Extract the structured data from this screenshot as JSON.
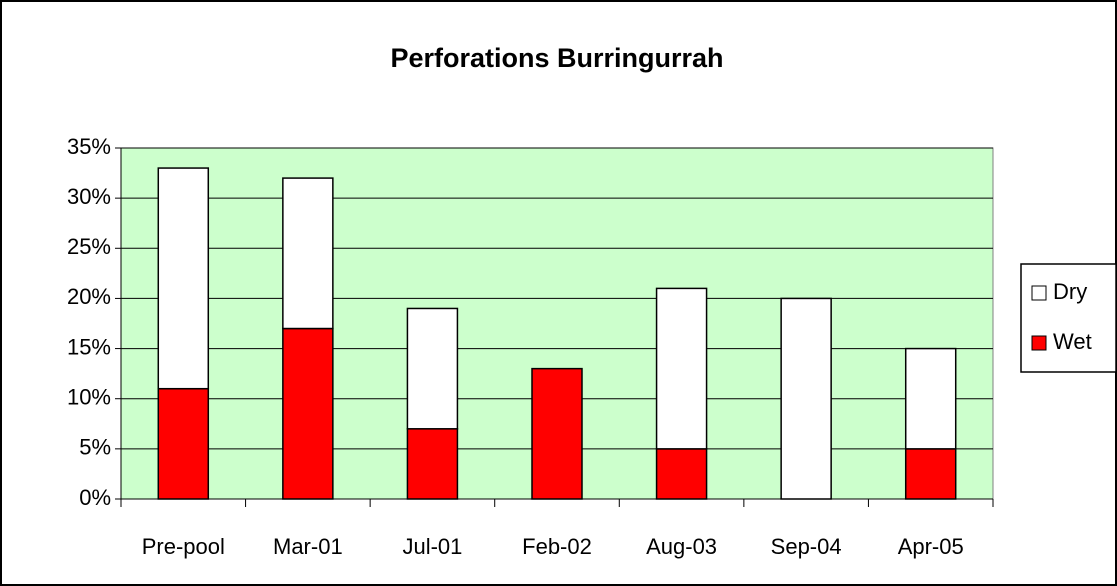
{
  "chart_data": {
    "type": "bar",
    "stacked": true,
    "title": "Perforations Burringurrah",
    "categories": [
      "Pre-pool",
      "Mar-01",
      "Jul-01",
      "Feb-02",
      "Aug-03",
      "Sep-04",
      "Apr-05"
    ],
    "series": [
      {
        "name": "Wet",
        "color": "#ff0000",
        "values": [
          11,
          17,
          7,
          13,
          5,
          0,
          5
        ]
      },
      {
        "name": "Dry",
        "color": "#ffffff",
        "values": [
          22,
          15,
          12,
          0,
          16,
          20,
          10
        ]
      }
    ],
    "ylim": [
      0,
      35
    ],
    "yticks": [
      {
        "value": 0,
        "label": "0%"
      },
      {
        "value": 5,
        "label": "5%"
      },
      {
        "value": 10,
        "label": "10%"
      },
      {
        "value": 15,
        "label": "15%"
      },
      {
        "value": 20,
        "label": "20%"
      },
      {
        "value": 25,
        "label": "25%"
      },
      {
        "value": 30,
        "label": "30%"
      },
      {
        "value": 35,
        "label": "35%"
      }
    ],
    "grid": true,
    "plot_background": "#ccffcc",
    "legend": "right"
  }
}
